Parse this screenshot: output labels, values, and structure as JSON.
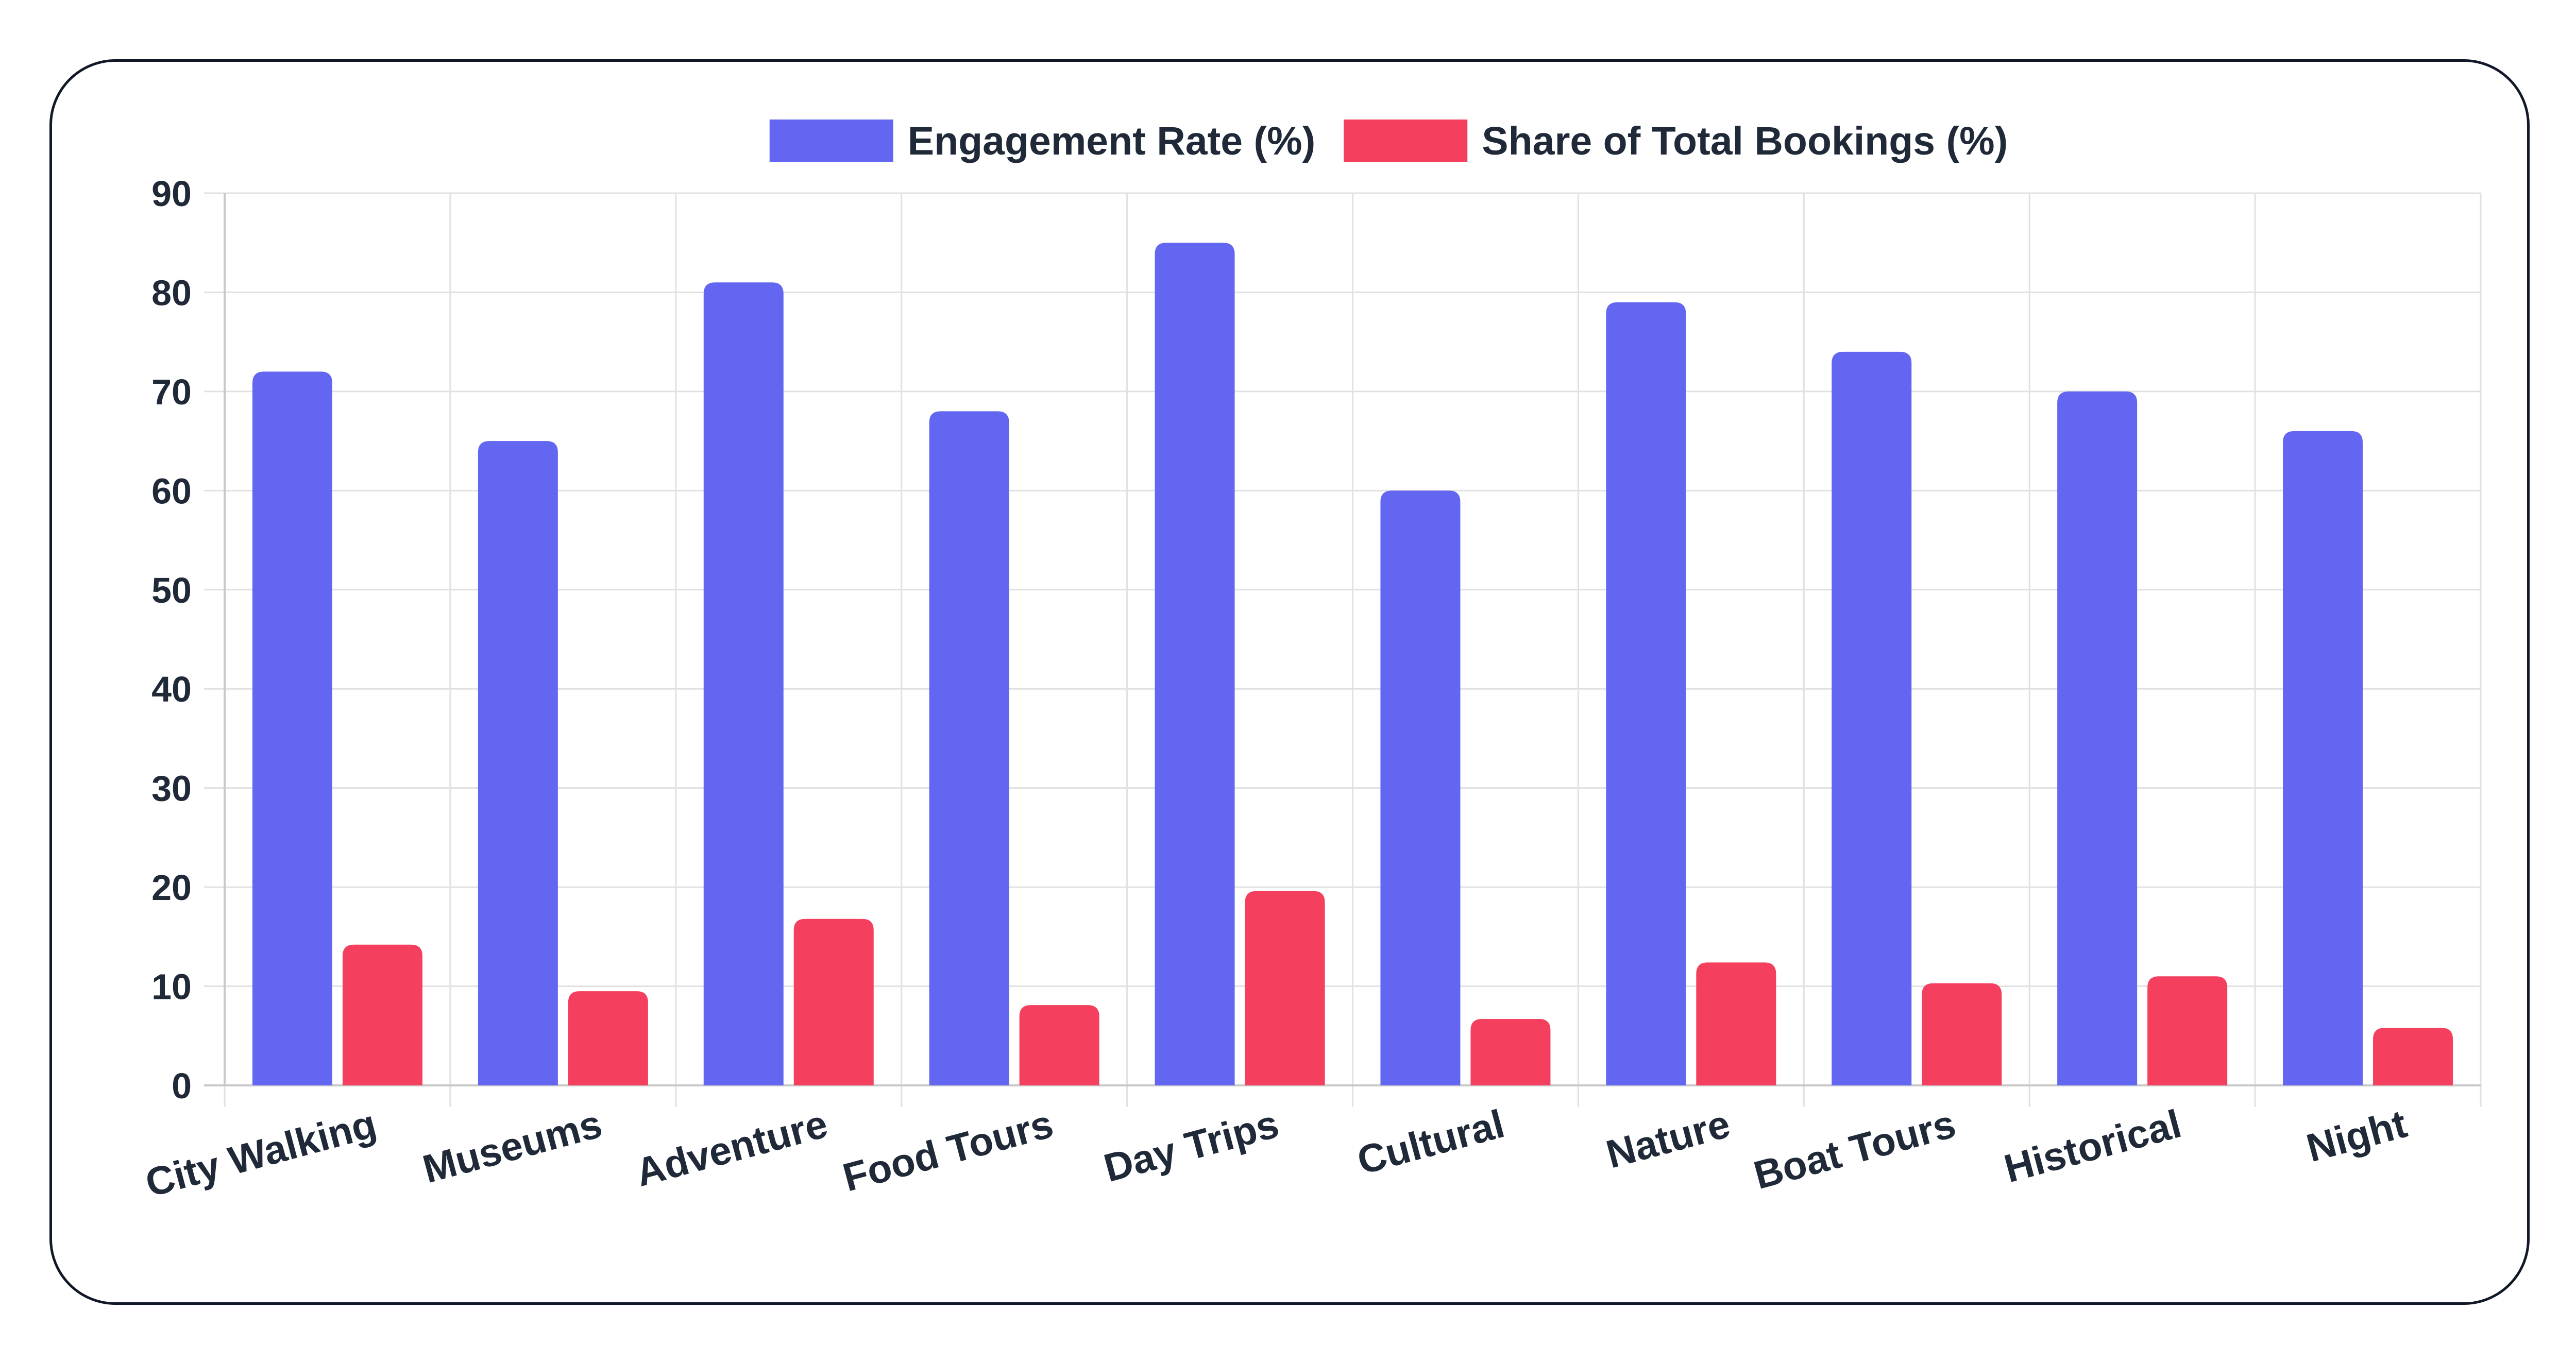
{
  "chart_data": {
    "type": "bar",
    "categories": [
      "City Walking",
      "Museums",
      "Adventure",
      "Food Tours",
      "Day Trips",
      "Cultural",
      "Nature",
      "Boat Tours",
      "Historical",
      "Night"
    ],
    "series": [
      {
        "name": "Engagement Rate (%)",
        "color": "#6366f1",
        "values": [
          72,
          65,
          81,
          68,
          85,
          60,
          79,
          74,
          70,
          66
        ]
      },
      {
        "name": "Share of Total Bookings (%)",
        "color": "#f43f5e",
        "values": [
          14.2,
          9.5,
          16.8,
          8.1,
          19.6,
          6.7,
          12.4,
          10.3,
          11.0,
          5.8
        ]
      }
    ],
    "ylim": [
      0,
      90
    ],
    "yticks": [
      0,
      10,
      20,
      30,
      40,
      50,
      60,
      70,
      80,
      90
    ],
    "grid": true,
    "legend_position": "top"
  }
}
